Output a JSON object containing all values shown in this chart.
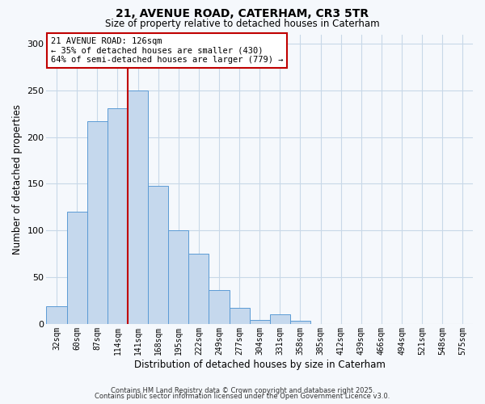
{
  "title": "21, AVENUE ROAD, CATERHAM, CR3 5TR",
  "subtitle": "Size of property relative to detached houses in Caterham",
  "xlabel": "Distribution of detached houses by size in Caterham",
  "ylabel": "Number of detached properties",
  "bar_labels": [
    "32sqm",
    "60sqm",
    "87sqm",
    "114sqm",
    "141sqm",
    "168sqm",
    "195sqm",
    "222sqm",
    "249sqm",
    "277sqm",
    "304sqm",
    "331sqm",
    "358sqm",
    "385sqm",
    "412sqm",
    "439sqm",
    "466sqm",
    "494sqm",
    "521sqm",
    "548sqm",
    "575sqm"
  ],
  "bar_values": [
    19,
    120,
    217,
    231,
    250,
    148,
    100,
    75,
    36,
    17,
    4,
    10,
    3,
    0,
    0,
    0,
    0,
    0,
    0,
    0,
    0
  ],
  "bar_color": "#c5d8ed",
  "bar_edge_color": "#5b9bd5",
  "bar_width": 1.0,
  "vline_x_index": 3.5,
  "vline_color": "#c00000",
  "annotation_title": "21 AVENUE ROAD: 126sqm",
  "annotation_line1": "← 35% of detached houses are smaller (430)",
  "annotation_line2": "64% of semi-detached houses are larger (779) →",
  "annotation_box_facecolor": "#ffffff",
  "annotation_box_edgecolor": "#c00000",
  "ylim": [
    0,
    310
  ],
  "yticks": [
    0,
    50,
    100,
    150,
    200,
    250,
    300
  ],
  "background_color": "#f5f8fc",
  "grid_color": "#c8d8e8",
  "footnote1": "Contains HM Land Registry data © Crown copyright and database right 2025.",
  "footnote2": "Contains public sector information licensed under the Open Government Licence v3.0."
}
